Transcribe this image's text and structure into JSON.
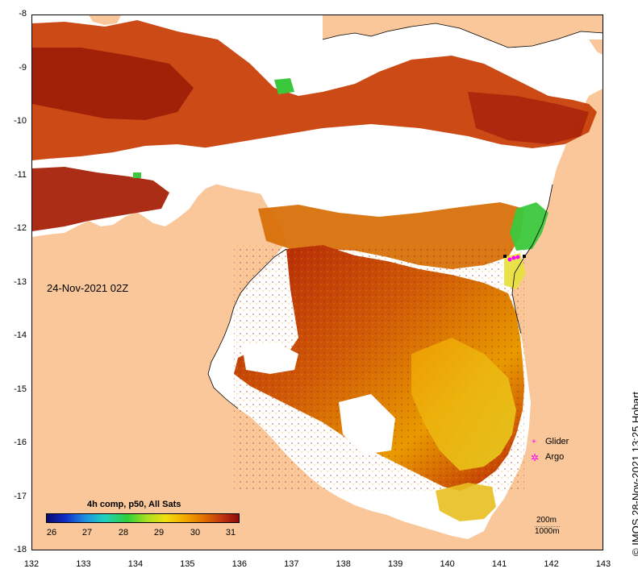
{
  "map": {
    "timestamp": "24-Nov-2021 02Z",
    "credit": "© IMOS 28-Nov-2021 13:25 Hobart",
    "x_ticks": [
      "132",
      "133",
      "134",
      "135",
      "136",
      "137",
      "138",
      "139",
      "140",
      "141",
      "142",
      "143"
    ],
    "y_ticks": [
      "-8",
      "-9",
      "-10",
      "-11",
      "-12",
      "-13",
      "-14",
      "-15",
      "-16",
      "-17",
      "-18"
    ],
    "lon_range": [
      132,
      143
    ],
    "lat_range": [
      -18,
      -8
    ],
    "colors": {
      "land": "#f9c79a",
      "no_data": "#ffffff",
      "warm": "#b82008",
      "mid": "#e07c00",
      "cool": "#f5c400",
      "green": "#3cc83c"
    },
    "colorbar": {
      "title": "4h comp, p50, All Sats",
      "labels": [
        "26",
        "27",
        "28",
        "29",
        "30",
        "31"
      ],
      "range": [
        26,
        31
      ]
    },
    "legend": {
      "glider": "Glider",
      "argo": "Argo",
      "glider_marker": "+",
      "argo_marker": "✲"
    },
    "scale": {
      "line1": "200m",
      "line2": "1000m"
    }
  }
}
